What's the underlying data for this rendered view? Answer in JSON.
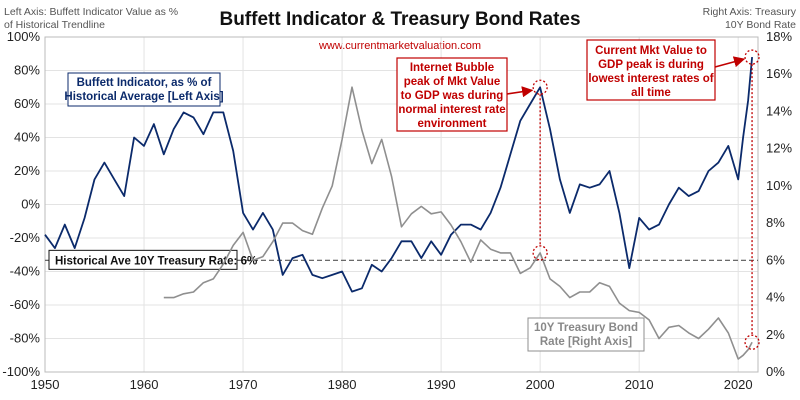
{
  "chart_data": {
    "type": "line",
    "title": "Buffett Indicator & Treasury Bond Rates",
    "source_url": "www.currentmarketvaluation.com",
    "left_axis_caption": [
      "Left Axis: Buffett Indicator Value as %",
      "of Historical Trendline"
    ],
    "right_axis_caption": [
      "Right Axis: Treasury",
      "10Y Bond Rate"
    ],
    "x_ticks": [
      "1950",
      "1960",
      "1970",
      "1980",
      "1990",
      "2000",
      "2010",
      "2020"
    ],
    "x_range": [
      1950,
      2022
    ],
    "y_left_ticks": [
      "100%",
      "80%",
      "60%",
      "40%",
      "20%",
      "0%",
      "-20%",
      "-40%",
      "-60%",
      "-80%",
      "-100%"
    ],
    "y_left_range": [
      -100,
      100
    ],
    "y_right_ticks": [
      "18%",
      "16%",
      "14%",
      "12%",
      "10%",
      "8%",
      "6%",
      "4%",
      "2%",
      "0%"
    ],
    "y_right_range": [
      0,
      18
    ],
    "grid": true,
    "series": [
      {
        "name": "Buffett Indicator, as % of Historical Average [Left Axis]",
        "color": "#0b2a6b",
        "axis": "left",
        "points": [
          [
            1950,
            -18
          ],
          [
            1951,
            -26
          ],
          [
            1952,
            -12
          ],
          [
            1953,
            -26
          ],
          [
            1954,
            -8
          ],
          [
            1955,
            15
          ],
          [
            1956,
            25
          ],
          [
            1957,
            15
          ],
          [
            1958,
            5
          ],
          [
            1959,
            40
          ],
          [
            1960,
            35
          ],
          [
            1961,
            48
          ],
          [
            1962,
            30
          ],
          [
            1963,
            45
          ],
          [
            1964,
            55
          ],
          [
            1965,
            52
          ],
          [
            1966,
            42
          ],
          [
            1967,
            55
          ],
          [
            1968,
            55
          ],
          [
            1969,
            32
          ],
          [
            1970,
            -5
          ],
          [
            1971,
            -15
          ],
          [
            1972,
            -5
          ],
          [
            1973,
            -15
          ],
          [
            1974,
            -42
          ],
          [
            1975,
            -32
          ],
          [
            1976,
            -30
          ],
          [
            1977,
            -42
          ],
          [
            1978,
            -44
          ],
          [
            1979,
            -42
          ],
          [
            1980,
            -40
          ],
          [
            1981,
            -52
          ],
          [
            1982,
            -50
          ],
          [
            1983,
            -36
          ],
          [
            1984,
            -40
          ],
          [
            1985,
            -32
          ],
          [
            1986,
            -22
          ],
          [
            1987,
            -22
          ],
          [
            1988,
            -32
          ],
          [
            1989,
            -22
          ],
          [
            1990,
            -30
          ],
          [
            1991,
            -18
          ],
          [
            1992,
            -12
          ],
          [
            1993,
            -12
          ],
          [
            1994,
            -15
          ],
          [
            1995,
            -5
          ],
          [
            1996,
            10
          ],
          [
            1997,
            30
          ],
          [
            1998,
            50
          ],
          [
            1999,
            60
          ],
          [
            2000,
            70
          ],
          [
            2001,
            45
          ],
          [
            2002,
            15
          ],
          [
            2003,
            -5
          ],
          [
            2004,
            12
          ],
          [
            2005,
            10
          ],
          [
            2006,
            12
          ],
          [
            2007,
            20
          ],
          [
            2008,
            -5
          ],
          [
            2009,
            -38
          ],
          [
            2010,
            -8
          ],
          [
            2011,
            -15
          ],
          [
            2012,
            -12
          ],
          [
            2013,
            0
          ],
          [
            2014,
            10
          ],
          [
            2015,
            5
          ],
          [
            2016,
            8
          ],
          [
            2017,
            20
          ],
          [
            2018,
            25
          ],
          [
            2019,
            35
          ],
          [
            2020,
            15
          ],
          [
            2020.5,
            40
          ],
          [
            2021,
            62
          ],
          [
            2021.4,
            88
          ]
        ]
      },
      {
        "name": "10Y Treasury Bond Rate [Right Axis]",
        "color": "#8f8f8f",
        "axis": "right",
        "points": [
          [
            1962,
            4.0
          ],
          [
            1963,
            4.0
          ],
          [
            1964,
            4.2
          ],
          [
            1965,
            4.3
          ],
          [
            1966,
            4.8
          ],
          [
            1967,
            5.0
          ],
          [
            1968,
            5.8
          ],
          [
            1969,
            6.8
          ],
          [
            1970,
            7.5
          ],
          [
            1971,
            6.0
          ],
          [
            1972,
            6.2
          ],
          [
            1973,
            7.0
          ],
          [
            1974,
            8.0
          ],
          [
            1975,
            8.0
          ],
          [
            1976,
            7.6
          ],
          [
            1977,
            7.4
          ],
          [
            1978,
            8.8
          ],
          [
            1979,
            10.0
          ],
          [
            1980,
            12.5
          ],
          [
            1981,
            15.3
          ],
          [
            1982,
            13.0
          ],
          [
            1983,
            11.2
          ],
          [
            1984,
            12.5
          ],
          [
            1985,
            10.5
          ],
          [
            1986,
            7.8
          ],
          [
            1987,
            8.5
          ],
          [
            1988,
            8.9
          ],
          [
            1989,
            8.5
          ],
          [
            1990,
            8.6
          ],
          [
            1991,
            7.9
          ],
          [
            1992,
            7.0
          ],
          [
            1993,
            5.9
          ],
          [
            1994,
            7.1
          ],
          [
            1995,
            6.6
          ],
          [
            1996,
            6.4
          ],
          [
            1997,
            6.4
          ],
          [
            1998,
            5.3
          ],
          [
            1999,
            5.6
          ],
          [
            2000,
            6.4
          ],
          [
            2001,
            5.0
          ],
          [
            2002,
            4.6
          ],
          [
            2003,
            4.0
          ],
          [
            2004,
            4.3
          ],
          [
            2005,
            4.3
          ],
          [
            2006,
            4.8
          ],
          [
            2007,
            4.6
          ],
          [
            2008,
            3.7
          ],
          [
            2009,
            3.3
          ],
          [
            2010,
            3.2
          ],
          [
            2011,
            2.8
          ],
          [
            2012,
            1.8
          ],
          [
            2013,
            2.4
          ],
          [
            2014,
            2.5
          ],
          [
            2015,
            2.1
          ],
          [
            2016,
            1.8
          ],
          [
            2017,
            2.3
          ],
          [
            2018,
            2.9
          ],
          [
            2019,
            2.1
          ],
          [
            2020,
            0.7
          ],
          [
            2020.5,
            0.9
          ],
          [
            2021,
            1.2
          ],
          [
            2021.4,
            1.6
          ]
        ]
      }
    ],
    "reference_line": {
      "label": "Historical Ave 10Y Treasury Rate: 6%",
      "value_right": 6
    },
    "annotations": {
      "buffett_label": [
        "Buffett Indicator, as % of",
        "Historical Average [Left Axis]"
      ],
      "treasury_label": [
        "10Y Treasury Bond",
        "Rate [Right Axis]"
      ],
      "bubble": [
        "Internet Bubble",
        "peak of Mkt Value",
        "to GDP was during",
        "normal interest rate",
        "environment"
      ],
      "current": [
        "Current Mkt Value to",
        "GDP peak is during",
        "lowest interest rates of",
        "all time"
      ]
    }
  }
}
